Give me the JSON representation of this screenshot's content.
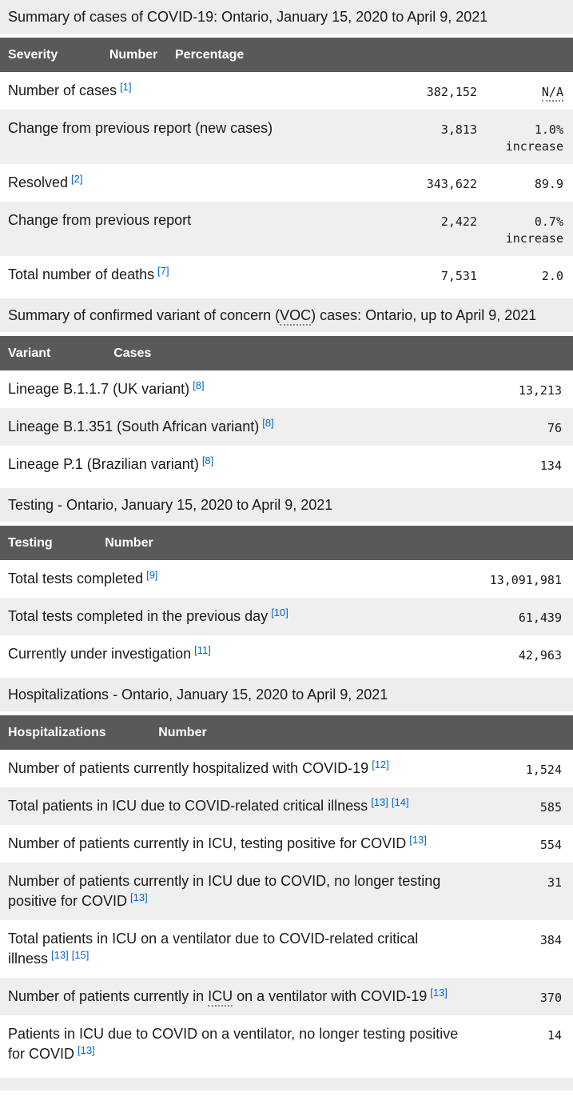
{
  "colors": {
    "header_bg": "#595959",
    "caption_bg": "#ededed",
    "stripe_bg": "#efefef",
    "text": "#1a1a1a",
    "link": "#0066cc"
  },
  "tables": [
    {
      "caption": "Summary of cases of COVID-19: Ontario, January 15, 2020 to April 9, 2021",
      "columns": [
        "Severity",
        "Number",
        "Percentage"
      ],
      "rows": [
        {
          "label": "Number of cases",
          "refs": [
            "[1]"
          ],
          "number": "382,152",
          "percentage": "N/A"
        },
        {
          "label": "Change from previous report (new cases)",
          "refs": [],
          "number": "3,813",
          "percentage": "1.0% increase"
        },
        {
          "label": "Resolved",
          "refs": [
            "[2]"
          ],
          "number": "343,622",
          "percentage": "89.9"
        },
        {
          "label": "Change from previous report",
          "refs": [],
          "number": "2,422",
          "percentage": "0.7% increase"
        },
        {
          "label": "Total number of deaths",
          "refs": [
            "[7]"
          ],
          "number": "7,531",
          "percentage": "2.0"
        }
      ]
    },
    {
      "caption_pre": "Summary of confirmed variant of concern (",
      "caption_abbr": "VOC",
      "caption_post": ") cases: Ontario, up to April 9, 2021",
      "columns": [
        "Variant",
        "Cases"
      ],
      "rows": [
        {
          "label": "Lineage B.1.1.7 (UK variant)",
          "refs": [
            "[8]"
          ],
          "number": "13,213"
        },
        {
          "label": "Lineage B.1.351 (South African variant)",
          "refs": [
            "[8]"
          ],
          "number": "76"
        },
        {
          "label": "Lineage P.1 (Brazilian variant)",
          "refs": [
            "[8]"
          ],
          "number": "134"
        }
      ]
    },
    {
      "caption": "Testing - Ontario, January 15, 2020 to April 9, 2021",
      "columns": [
        "Testing",
        "Number"
      ],
      "rows": [
        {
          "label": "Total tests completed",
          "refs": [
            "[9]"
          ],
          "number": "13,091,981"
        },
        {
          "label": "Total tests completed in the previous day",
          "refs": [
            "[10]"
          ],
          "number": "61,439"
        },
        {
          "label": "Currently under investigation",
          "refs": [
            "[11]"
          ],
          "number": "42,963"
        }
      ]
    },
    {
      "caption": "Hospitalizations - Ontario, January 15, 2020 to April 9, 2021",
      "columns": [
        "Hospitalizations",
        "Number"
      ],
      "rows": [
        {
          "label": "Number of patients currently hospitalized with COVID-19",
          "refs": [
            "[12]"
          ],
          "number": "1,524"
        },
        {
          "label": "Total patients in ICU due to COVID-related critical illness",
          "refs": [
            "[13]",
            "[14]"
          ],
          "number": "585"
        },
        {
          "label": "Number of patients currently in ICU, testing positive for COVID",
          "refs": [
            "[13]"
          ],
          "number": "554"
        },
        {
          "label": "Number of patients currently in ICU due to COVID, no longer testing positive for COVID",
          "refs": [
            "[13]"
          ],
          "number": "31"
        },
        {
          "label": "Total patients in ICU on a ventilator due to COVID-related critical illness",
          "refs": [
            "[13]",
            "[15]"
          ],
          "number": "384"
        },
        {
          "label_pre": "Number of patients currently in ",
          "label_abbr": "ICU",
          "label_post": " on a ventilator with COVID-19",
          "refs": [
            "[13]"
          ],
          "number": "370"
        },
        {
          "label": "Patients in ICU due to COVID on a ventilator, no longer testing positive for COVID",
          "refs": [
            "[13]"
          ],
          "number": "14"
        }
      ]
    }
  ]
}
